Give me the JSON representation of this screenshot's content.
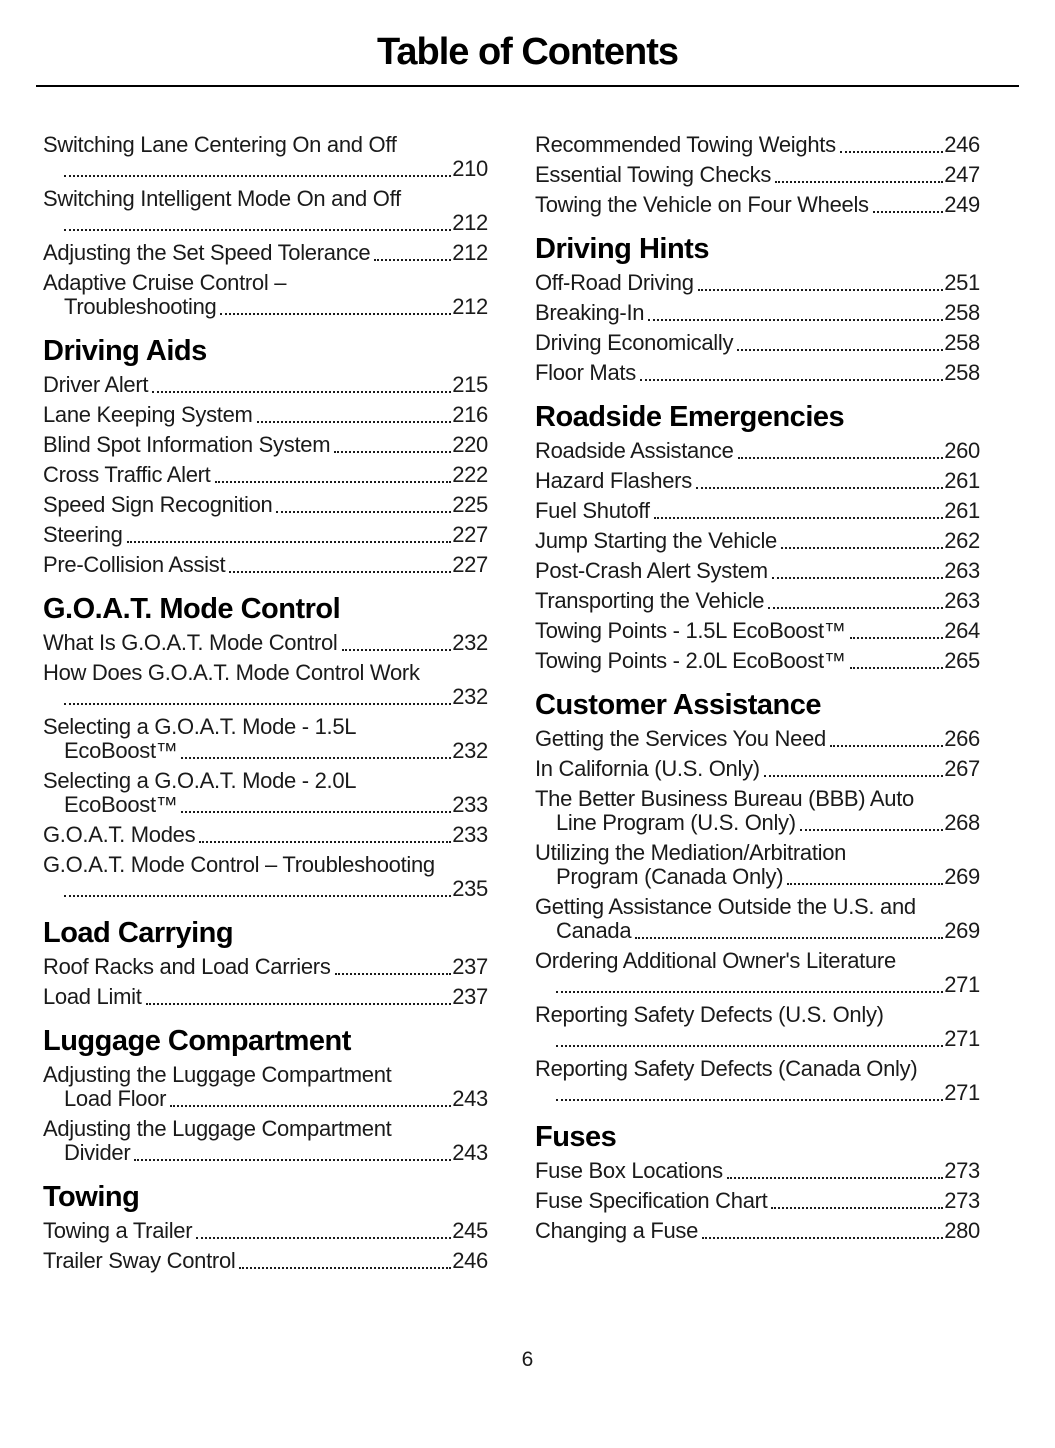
{
  "page": {
    "title": "Table of Contents",
    "page_number": "6"
  },
  "colors": {
    "background": "#ffffff",
    "text": "#1a1a1a",
    "heading": "#000000"
  },
  "columns": {
    "left": [
      {
        "heading": "",
        "entries": [
          {
            "label": "Switching Lane Centering On and Off",
            "page": "210",
            "lines": [
              "Switching Lane Centering On and Off",
              ""
            ]
          },
          {
            "label": "Switching Intelligent Mode On and Off",
            "page": "212",
            "lines": [
              "Switching Intelligent Mode On and Off",
              ""
            ]
          },
          {
            "label": "Adjusting the Set Speed Tolerance",
            "page": "212",
            "lines": [
              "Adjusting the Set Speed Tolerance"
            ]
          },
          {
            "label": "Adaptive Cruise Control – Troubleshooting",
            "page": "212",
            "lines": [
              "Adaptive Cruise Control –",
              "Troubleshooting"
            ]
          }
        ]
      },
      {
        "heading": "Driving Aids",
        "entries": [
          {
            "label": "Driver Alert",
            "page": "215",
            "lines": [
              "Driver Alert"
            ]
          },
          {
            "label": "Lane Keeping System",
            "page": "216",
            "lines": [
              "Lane Keeping System"
            ]
          },
          {
            "label": "Blind Spot Information System",
            "page": "220",
            "lines": [
              "Blind Spot Information System"
            ]
          },
          {
            "label": "Cross Traffic Alert",
            "page": "222",
            "lines": [
              "Cross Traffic Alert"
            ]
          },
          {
            "label": "Speed Sign Recognition",
            "page": "225",
            "lines": [
              "Speed Sign Recognition"
            ]
          },
          {
            "label": "Steering",
            "page": "227",
            "lines": [
              "Steering"
            ]
          },
          {
            "label": "Pre-Collision Assist",
            "page": "227",
            "lines": [
              "Pre-Collision Assist"
            ]
          }
        ]
      },
      {
        "heading": "G.O.A.T. Mode Control",
        "entries": [
          {
            "label": "What Is G.O.A.T. Mode Control",
            "page": "232",
            "lines": [
              "What Is G.O.A.T. Mode Control"
            ]
          },
          {
            "label": "How Does G.O.A.T. Mode Control Work",
            "page": "232",
            "lines": [
              "How Does G.O.A.T. Mode Control Work",
              ""
            ]
          },
          {
            "label": "Selecting a G.O.A.T. Mode - 1.5L EcoBoost™",
            "page": "232",
            "lines": [
              "Selecting a G.O.A.T. Mode - 1.5L",
              "EcoBoost™"
            ]
          },
          {
            "label": "Selecting a G.O.A.T. Mode - 2.0L EcoBoost™",
            "page": "233",
            "lines": [
              "Selecting a G.O.A.T. Mode - 2.0L",
              "EcoBoost™"
            ]
          },
          {
            "label": "G.O.A.T. Modes",
            "page": "233",
            "lines": [
              "G.O.A.T. Modes"
            ]
          },
          {
            "label": "G.O.A.T. Mode Control – Troubleshooting",
            "page": "235",
            "lines": [
              "G.O.A.T. Mode Control – Troubleshooting",
              ""
            ]
          }
        ]
      },
      {
        "heading": "Load Carrying",
        "entries": [
          {
            "label": "Roof Racks and Load Carriers",
            "page": "237",
            "lines": [
              "Roof Racks and Load Carriers"
            ]
          },
          {
            "label": "Load Limit",
            "page": "237",
            "lines": [
              "Load Limit"
            ]
          }
        ]
      },
      {
        "heading": "Luggage Compartment",
        "entries": [
          {
            "label": "Adjusting the Luggage Compartment Load Floor",
            "page": "243",
            "lines": [
              "Adjusting the Luggage Compartment",
              "Load Floor"
            ]
          },
          {
            "label": "Adjusting the Luggage Compartment Divider",
            "page": "243",
            "lines": [
              "Adjusting the Luggage Compartment",
              "Divider"
            ]
          }
        ]
      },
      {
        "heading": "Towing",
        "entries": [
          {
            "label": "Towing a Trailer",
            "page": "245",
            "lines": [
              "Towing a Trailer"
            ]
          },
          {
            "label": "Trailer Sway Control",
            "page": "246",
            "lines": [
              "Trailer Sway Control"
            ]
          }
        ]
      }
    ],
    "right": [
      {
        "heading": "",
        "entries": [
          {
            "label": "Recommended Towing Weights",
            "page": "246",
            "lines": [
              "Recommended Towing Weights"
            ]
          },
          {
            "label": "Essential Towing Checks",
            "page": "247",
            "lines": [
              "Essential Towing Checks"
            ]
          },
          {
            "label": "Towing the Vehicle on Four Wheels",
            "page": "249",
            "lines": [
              "Towing the Vehicle on Four Wheels"
            ]
          }
        ]
      },
      {
        "heading": "Driving Hints",
        "entries": [
          {
            "label": "Off-Road Driving",
            "page": "251",
            "lines": [
              "Off-Road Driving"
            ]
          },
          {
            "label": "Breaking-In",
            "page": "258",
            "lines": [
              "Breaking-In"
            ]
          },
          {
            "label": "Driving Economically",
            "page": "258",
            "lines": [
              "Driving Economically"
            ]
          },
          {
            "label": "Floor Mats",
            "page": "258",
            "lines": [
              "Floor Mats"
            ]
          }
        ]
      },
      {
        "heading": "Roadside Emergencies",
        "entries": [
          {
            "label": "Roadside Assistance",
            "page": "260",
            "lines": [
              "Roadside Assistance"
            ]
          },
          {
            "label": "Hazard Flashers",
            "page": "261",
            "lines": [
              "Hazard Flashers"
            ]
          },
          {
            "label": "Fuel Shutoff",
            "page": "261",
            "lines": [
              "Fuel Shutoff"
            ]
          },
          {
            "label": "Jump Starting the Vehicle",
            "page": "262",
            "lines": [
              "Jump Starting the Vehicle"
            ]
          },
          {
            "label": "Post-Crash Alert System",
            "page": "263",
            "lines": [
              "Post-Crash Alert System"
            ]
          },
          {
            "label": "Transporting the Vehicle",
            "page": "263",
            "lines": [
              "Transporting the Vehicle"
            ]
          },
          {
            "label": "Towing Points - 1.5L EcoBoost™",
            "page": "264",
            "lines": [
              "Towing Points - 1.5L EcoBoost™"
            ]
          },
          {
            "label": "Towing Points - 2.0L EcoBoost™",
            "page": "265",
            "lines": [
              "Towing Points - 2.0L EcoBoost™"
            ]
          }
        ]
      },
      {
        "heading": "Customer Assistance",
        "entries": [
          {
            "label": "Getting the Services You Need",
            "page": "266",
            "lines": [
              "Getting the Services You Need"
            ]
          },
          {
            "label": "In California (U.S. Only)",
            "page": "267",
            "lines": [
              "In California (U.S. Only)"
            ]
          },
          {
            "label": "The Better Business Bureau (BBB) Auto Line Program (U.S. Only)",
            "page": "268",
            "lines": [
              "The Better Business Bureau (BBB) Auto",
              "Line Program (U.S. Only)"
            ]
          },
          {
            "label": "Utilizing the Mediation/Arbitration Program (Canada Only)",
            "page": "269",
            "lines": [
              "Utilizing the Mediation/Arbitration",
              "Program (Canada Only)"
            ]
          },
          {
            "label": "Getting Assistance Outside the U.S. and Canada",
            "page": "269",
            "lines": [
              "Getting Assistance Outside the U.S. and",
              "Canada"
            ]
          },
          {
            "label": "Ordering Additional Owner's Literature",
            "page": "271",
            "lines": [
              "Ordering Additional Owner's Literature",
              ""
            ]
          },
          {
            "label": "Reporting Safety Defects (U.S. Only)",
            "page": "271",
            "lines": [
              "Reporting Safety Defects (U.S. Only)",
              ""
            ]
          },
          {
            "label": "Reporting Safety Defects (Canada Only)",
            "page": "271",
            "lines": [
              "Reporting Safety Defects (Canada Only)",
              ""
            ]
          }
        ]
      },
      {
        "heading": "Fuses",
        "entries": [
          {
            "label": "Fuse Box Locations",
            "page": "273",
            "lines": [
              "Fuse Box Locations"
            ]
          },
          {
            "label": "Fuse Specification Chart",
            "page": "273",
            "lines": [
              "Fuse Specification Chart"
            ]
          },
          {
            "label": "Changing a Fuse",
            "page": "280",
            "lines": [
              "Changing a Fuse"
            ]
          }
        ]
      }
    ]
  }
}
